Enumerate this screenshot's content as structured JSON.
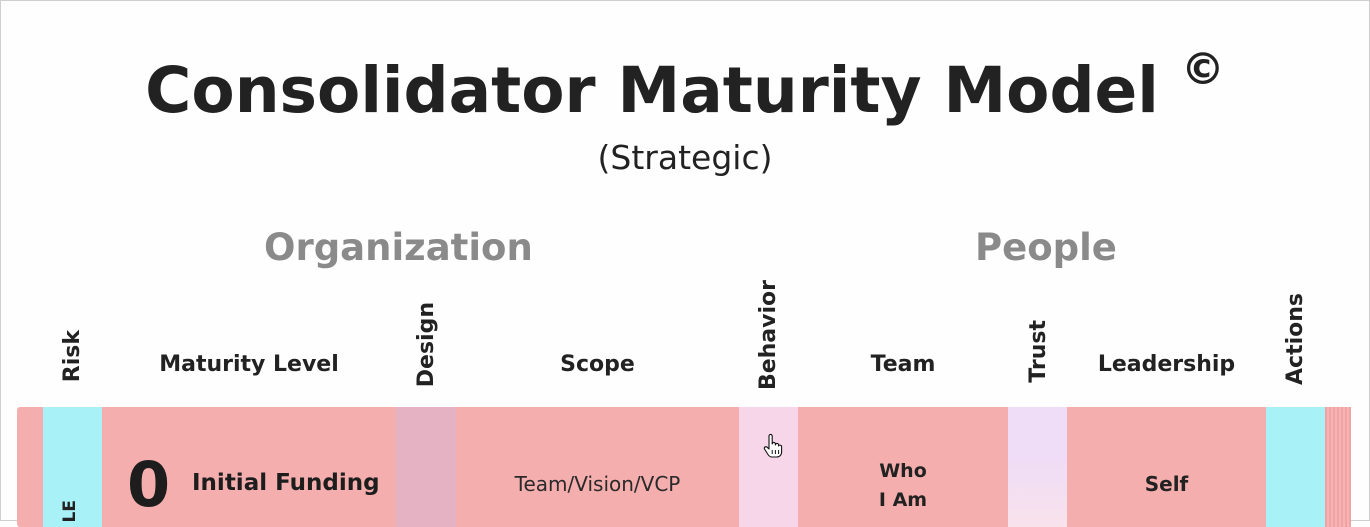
{
  "header": {
    "title": "Consolidator Maturity Model",
    "copyright_mark": "©",
    "subtitle": "(Strategic)"
  },
  "sections": {
    "organization": "Organization",
    "people": "People"
  },
  "columns": {
    "risk": "Risk",
    "maturity_level": "Maturity Level",
    "design": "Design",
    "scope": "Scope",
    "behavior": "Behavior",
    "team": "Team",
    "trust": "Trust",
    "leadership": "Leadership",
    "actions": "Actions"
  },
  "rows": [
    {
      "risk": "LE",
      "level_number": "0",
      "level_name": "Initial Funding",
      "scope": "Team/Vision/VCP",
      "team_line1": "Who",
      "team_line2": "I Am",
      "leadership": "Self"
    }
  ],
  "colors": {
    "row_bg": "#f5aeae",
    "risk_actions": "#a7f1f7",
    "design": "#e5b2c4",
    "behavior": "#f6d6e8",
    "trust": "#efdcf6",
    "section_heading": "#8a8a8a"
  },
  "icons": {
    "cursor": "hand-pointer-icon"
  }
}
